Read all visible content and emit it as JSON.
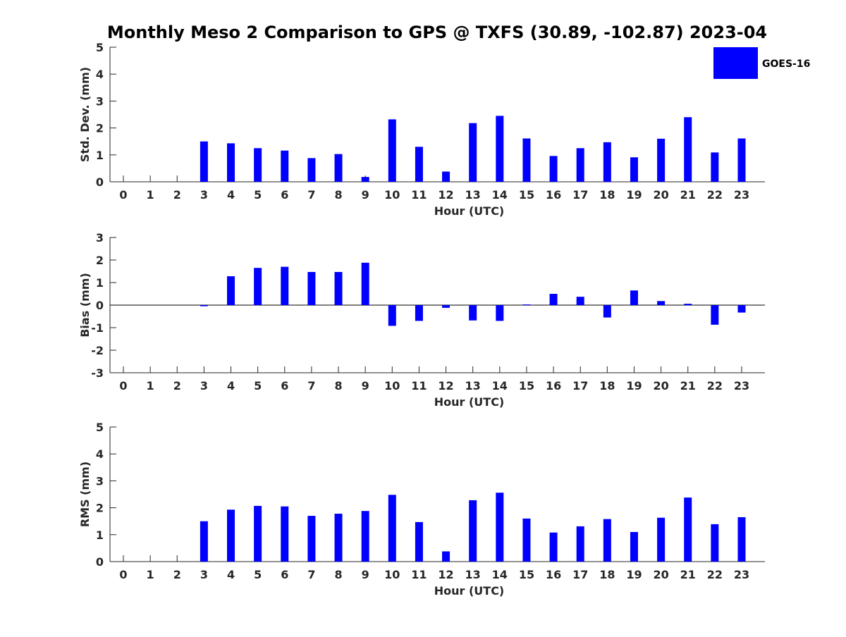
{
  "figure": {
    "title": "Monthly Meso 2 Comparison to GPS @ TXFS (30.89, -102.87) 2023-04",
    "legend": {
      "label": "GOES-16",
      "color": "#0000ff",
      "placement": "top-right"
    }
  },
  "chart_data": [
    {
      "type": "bar",
      "xlabel": "Hour (UTC)",
      "ylabel": "Std. Dev. (mm)",
      "ylim": [
        0,
        5
      ],
      "yticks": [
        0,
        1,
        2,
        3,
        4,
        5
      ],
      "categories": [
        0,
        1,
        2,
        3,
        4,
        5,
        6,
        7,
        8,
        9,
        10,
        11,
        12,
        13,
        14,
        15,
        16,
        17,
        18,
        19,
        20,
        21,
        22,
        23
      ],
      "series": [
        {
          "name": "GOES-16",
          "color": "#0000ff",
          "values": [
            null,
            null,
            null,
            1.5,
            1.43,
            1.25,
            1.16,
            0.88,
            1.03,
            0.18,
            2.32,
            1.3,
            0.38,
            2.18,
            2.45,
            1.61,
            0.96,
            1.25,
            1.47,
            0.91,
            1.6,
            2.4,
            1.09,
            1.61
          ]
        }
      ],
      "grid": false
    },
    {
      "type": "bar",
      "xlabel": "Hour (UTC)",
      "ylabel": "Bias (mm)",
      "ylim": [
        -3,
        3
      ],
      "yticks": [
        -3,
        -2,
        -1,
        0,
        1,
        2,
        3
      ],
      "categories": [
        0,
        1,
        2,
        3,
        4,
        5,
        6,
        7,
        8,
        9,
        10,
        11,
        12,
        13,
        14,
        15,
        16,
        17,
        18,
        19,
        20,
        21,
        22,
        23
      ],
      "series": [
        {
          "name": "GOES-16",
          "color": "#0000ff",
          "values": [
            null,
            null,
            null,
            -0.05,
            1.28,
            1.65,
            1.7,
            1.47,
            1.47,
            1.88,
            -0.92,
            -0.7,
            -0.12,
            -0.68,
            -0.7,
            0.03,
            0.5,
            0.37,
            -0.55,
            0.65,
            0.18,
            0.06,
            -0.87,
            -0.33
          ]
        }
      ],
      "zero_line": true,
      "grid": false
    },
    {
      "type": "bar",
      "xlabel": "Hour (UTC)",
      "ylabel": "RMS (mm)",
      "ylim": [
        0,
        5
      ],
      "yticks": [
        0,
        1,
        2,
        3,
        4,
        5
      ],
      "categories": [
        0,
        1,
        2,
        3,
        4,
        5,
        6,
        7,
        8,
        9,
        10,
        11,
        12,
        13,
        14,
        15,
        16,
        17,
        18,
        19,
        20,
        21,
        22,
        23
      ],
      "series": [
        {
          "name": "GOES-16",
          "color": "#0000ff",
          "values": [
            null,
            null,
            null,
            1.5,
            1.93,
            2.07,
            2.05,
            1.7,
            1.78,
            1.88,
            2.48,
            1.47,
            0.38,
            2.28,
            2.56,
            1.6,
            1.08,
            1.31,
            1.58,
            1.1,
            1.63,
            2.38,
            1.39,
            1.65
          ]
        }
      ],
      "grid": false
    }
  ]
}
